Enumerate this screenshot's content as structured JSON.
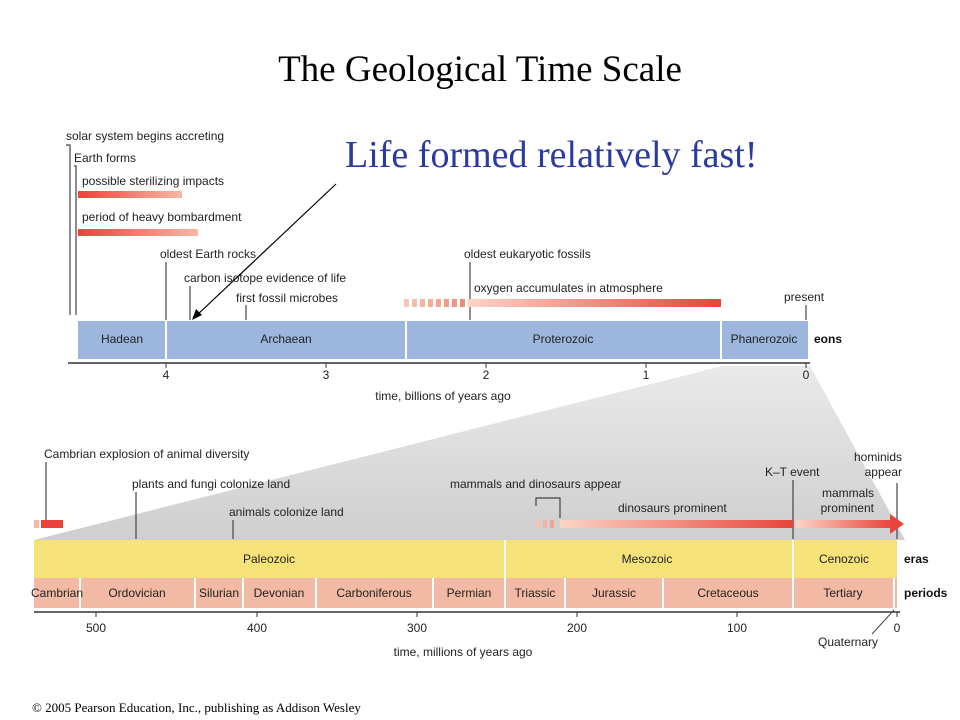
{
  "title": "The Geological Time Scale",
  "callout": "Life formed relatively fast!",
  "copyright": "© 2005 Pearson Education, Inc., publishing as Addison Wesley",
  "colors": {
    "eon_bar": "#9db6de",
    "era_bar": "#f5e37a",
    "period_bar": "#f2b9a4",
    "event_red": "#e8443a",
    "callout_text": "#2a3aa0"
  },
  "eon_scale": {
    "axis_label": "time, billions of years ago",
    "ticks": [
      4,
      3,
      2,
      1,
      0
    ],
    "eons": [
      {
        "name": "Hadean",
        "start": 4.6,
        "end": 4.0
      },
      {
        "name": "Archaean",
        "start": 4.0,
        "end": 2.5
      },
      {
        "name": "Proterozoic",
        "start": 2.5,
        "end": 0.543
      },
      {
        "name": "Phanerozoic",
        "start": 0.543,
        "end": 0
      }
    ],
    "row_label": "eons",
    "events": [
      {
        "label": "solar system begins accreting",
        "time": 4.6
      },
      {
        "label": "Earth forms",
        "time": 4.55
      },
      {
        "label": "possible sterilizing impacts",
        "range": [
          4.55,
          3.9
        ]
      },
      {
        "label": "period of heavy bombardment",
        "range": [
          4.55,
          3.8
        ]
      },
      {
        "label": "oldest Earth rocks",
        "time": 4.0
      },
      {
        "label": "carbon isotope evidence of life",
        "time": 3.85
      },
      {
        "label": "first fossil microbes",
        "time": 3.5
      },
      {
        "label": "oldest eukaryotic fossils",
        "time": 2.1
      },
      {
        "label": "oxygen accumulates in atmosphere",
        "range": [
          2.4,
          0.5
        ]
      },
      {
        "label": "present",
        "time": 0
      }
    ]
  },
  "phanerozoic_scale": {
    "axis_label": "time, millions of years ago",
    "ticks": [
      500,
      400,
      300,
      200,
      100,
      0
    ],
    "eras": [
      {
        "name": "Paleozoic",
        "start": 542,
        "end": 251
      },
      {
        "name": "Mesozoic",
        "start": 251,
        "end": 65
      },
      {
        "name": "Cenozoic",
        "start": 65,
        "end": 0
      }
    ],
    "periods": [
      {
        "name": "Cambrian",
        "start": 542,
        "end": 488
      },
      {
        "name": "Ordovician",
        "start": 488,
        "end": 444
      },
      {
        "name": "Silurian",
        "start": 444,
        "end": 416
      },
      {
        "name": "Devonian",
        "start": 416,
        "end": 359
      },
      {
        "name": "Carboniferous",
        "start": 359,
        "end": 299
      },
      {
        "name": "Permian",
        "start": 299,
        "end": 251
      },
      {
        "name": "Triassic",
        "start": 251,
        "end": 200
      },
      {
        "name": "Jurassic",
        "start": 200,
        "end": 146
      },
      {
        "name": "Cretaceous",
        "start": 146,
        "end": 65
      },
      {
        "name": "Tertiary",
        "start": 65,
        "end": 1.8
      },
      {
        "name": "Quaternary",
        "start": 1.8,
        "end": 0
      }
    ],
    "row_labels": {
      "eras": "eras",
      "periods": "periods"
    },
    "events": [
      {
        "label": "Cambrian explosion of animal diversity",
        "time": 540
      },
      {
        "label": "plants and fungi colonize land",
        "time": 475
      },
      {
        "label": "animals colonize land",
        "time": 420
      },
      {
        "label": "mammals and dinosaurs appear",
        "time": 225
      },
      {
        "label": "dinosaurs prominent",
        "range": [
          225,
          65
        ]
      },
      {
        "label": "K–T event",
        "time": 65
      },
      {
        "label": "mammals prominent",
        "range": [
          65,
          0
        ]
      },
      {
        "label": "hominids appear",
        "time": 2
      }
    ]
  }
}
